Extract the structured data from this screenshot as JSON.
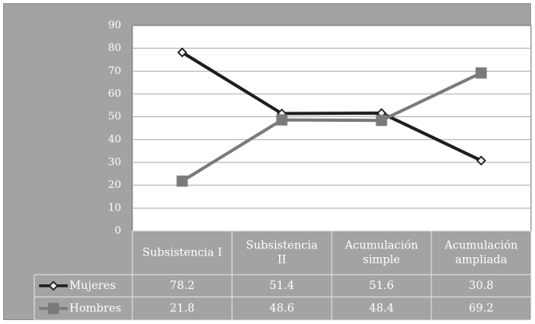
{
  "chart_data": {
    "type": "line",
    "categories": [
      [
        "Subsistencia I"
      ],
      [
        "Subsistencia",
        "II"
      ],
      [
        "Acumulación",
        "simple"
      ],
      [
        "Acumulación",
        "ampliada"
      ]
    ],
    "series": [
      {
        "name": "Mujeres",
        "values": [
          78.2,
          51.4,
          51.6,
          30.8
        ],
        "value_labels": [
          "78.2",
          "51.4",
          "51.6",
          "30.8"
        ],
        "color": "#1e1e1e",
        "marker": "diamond"
      },
      {
        "name": "Hombres",
        "values": [
          21.8,
          48.6,
          48.4,
          69.2
        ],
        "value_labels": [
          "21.8",
          "48.6",
          "48.4",
          "69.2"
        ],
        "color": "#7a7a7a",
        "marker": "square"
      }
    ],
    "yticks": [
      "0",
      "10",
      "20",
      "30",
      "40",
      "50",
      "60",
      "70",
      "80",
      "90"
    ],
    "ylim": [
      0,
      90
    ],
    "grid": true,
    "legend": "data-table",
    "title": "",
    "xlabel": "",
    "ylabel": ""
  }
}
